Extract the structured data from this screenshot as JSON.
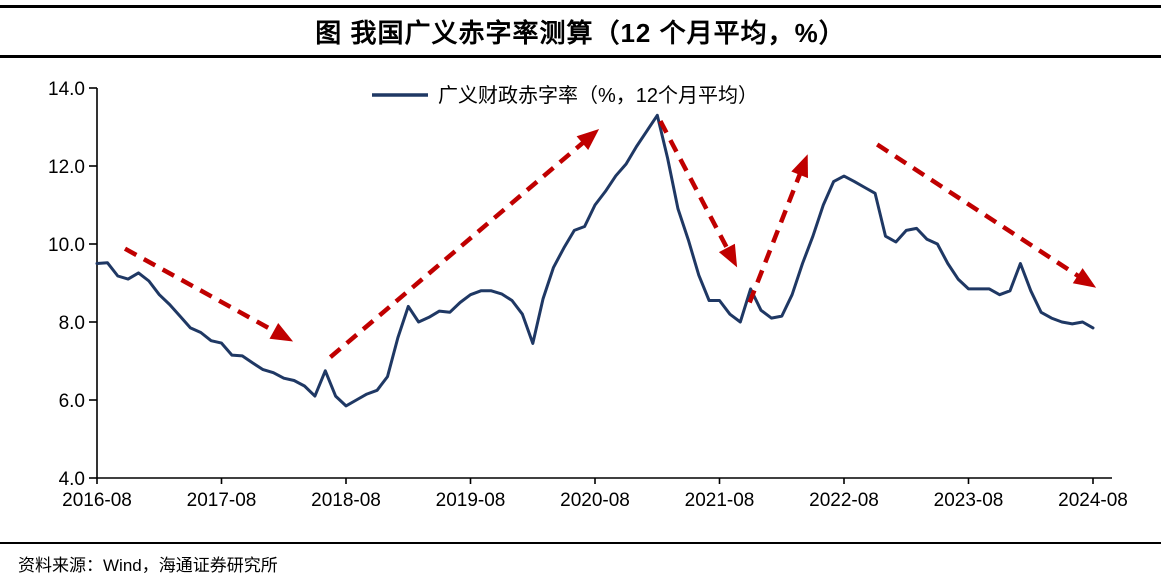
{
  "page": {
    "title": "图 我国广义赤字率测算（12 个月平均，%）",
    "source": "资料来源：Wind，海通证券研究所"
  },
  "chart_data": {
    "type": "line",
    "title": "图 我国广义赤字率测算（12 个月平均，%）",
    "legend": [
      "广义财政赤字率（%，12个月平均）"
    ],
    "legend_position": "top-center",
    "grid": false,
    "ylim": [
      4.0,
      14.0
    ],
    "ylabel": "",
    "xlabel": "",
    "y_tick_labels": [
      "14.0",
      "12.0",
      "10.0",
      "8.0",
      "6.0",
      "4.0"
    ],
    "x_tick_labels": [
      "2016-08",
      "2017-08",
      "2018-08",
      "2019-08",
      "2020-08",
      "2021-08",
      "2022-08",
      "2023-08",
      "2024-08"
    ],
    "x": [
      "2016-08",
      "2016-09",
      "2016-10",
      "2016-11",
      "2016-12",
      "2017-01",
      "2017-02",
      "2017-03",
      "2017-04",
      "2017-05",
      "2017-06",
      "2017-07",
      "2017-08",
      "2017-09",
      "2017-10",
      "2017-11",
      "2017-12",
      "2018-01",
      "2018-02",
      "2018-03",
      "2018-04",
      "2018-05",
      "2018-06",
      "2018-07",
      "2018-08",
      "2018-09",
      "2018-10",
      "2018-11",
      "2018-12",
      "2019-01",
      "2019-02",
      "2019-03",
      "2019-04",
      "2019-05",
      "2019-06",
      "2019-07",
      "2019-08",
      "2019-09",
      "2019-10",
      "2019-11",
      "2019-12",
      "2020-01",
      "2020-02",
      "2020-03",
      "2020-04",
      "2020-05",
      "2020-06",
      "2020-07",
      "2020-08",
      "2020-09",
      "2020-10",
      "2020-11",
      "2020-12",
      "2021-01",
      "2021-02",
      "2021-03",
      "2021-04",
      "2021-05",
      "2021-06",
      "2021-07",
      "2021-08",
      "2021-09",
      "2021-10",
      "2021-11",
      "2021-12",
      "2022-01",
      "2022-02",
      "2022-03",
      "2022-04",
      "2022-05",
      "2022-06",
      "2022-07",
      "2022-08",
      "2022-09",
      "2022-10",
      "2022-11",
      "2022-12",
      "2023-01",
      "2023-02",
      "2023-03",
      "2023-04",
      "2023-05",
      "2023-06",
      "2023-07",
      "2023-08",
      "2023-09",
      "2023-10",
      "2023-11",
      "2023-12",
      "2024-01",
      "2024-02",
      "2024-03",
      "2024-04",
      "2024-05",
      "2024-06",
      "2024-07",
      "2024-08"
    ],
    "series": [
      {
        "name": "广义财政赤字率（%，12个月平均）",
        "color": "#1f3864",
        "values": [
          9.5,
          9.52,
          9.18,
          9.1,
          9.26,
          9.05,
          8.7,
          8.45,
          8.15,
          7.85,
          7.73,
          7.52,
          7.46,
          7.15,
          7.13,
          6.95,
          6.78,
          6.7,
          6.56,
          6.5,
          6.36,
          6.1,
          6.75,
          6.1,
          5.85,
          6.0,
          6.15,
          6.25,
          6.6,
          7.6,
          8.4,
          8.0,
          8.12,
          8.28,
          8.25,
          8.5,
          8.7,
          8.8,
          8.8,
          8.72,
          8.55,
          8.2,
          7.45,
          8.6,
          9.4,
          9.9,
          10.35,
          10.45,
          11.0,
          11.35,
          11.75,
          12.05,
          12.5,
          12.9,
          13.3,
          12.2,
          10.9,
          10.1,
          9.2,
          8.55,
          8.55,
          8.2,
          8.0,
          8.85,
          8.3,
          8.1,
          8.15,
          8.7,
          9.5,
          10.2,
          11.0,
          11.6,
          11.74,
          11.6,
          11.45,
          11.3,
          10.2,
          10.05,
          10.35,
          10.4,
          10.12,
          10.0,
          9.5,
          9.1,
          8.85,
          8.85,
          8.85,
          8.7,
          8.8,
          9.5,
          8.8,
          8.25,
          8.1,
          8.0,
          7.95,
          8.0,
          7.85
        ]
      }
    ],
    "annotations": {
      "description": "five hand-drawn red dashed trend arrows, coords are [month-index from 2016-08, value %]",
      "color": "#c00000",
      "arrows": [
        {
          "from": [
            2.7,
            9.88
          ],
          "to": [
            18.9,
            7.5
          ]
        },
        {
          "from": [
            22.5,
            7.1
          ],
          "to": [
            48.4,
            12.95
          ]
        },
        {
          "from": [
            54.3,
            13.15
          ],
          "to": [
            61.7,
            9.4
          ]
        },
        {
          "from": [
            62.9,
            8.5
          ],
          "to": [
            68.5,
            12.3
          ]
        },
        {
          "from": [
            75.2,
            12.55
          ],
          "to": [
            96.3,
            8.88
          ]
        }
      ]
    },
    "source": "资料来源：Wind，海通证券研究所"
  }
}
